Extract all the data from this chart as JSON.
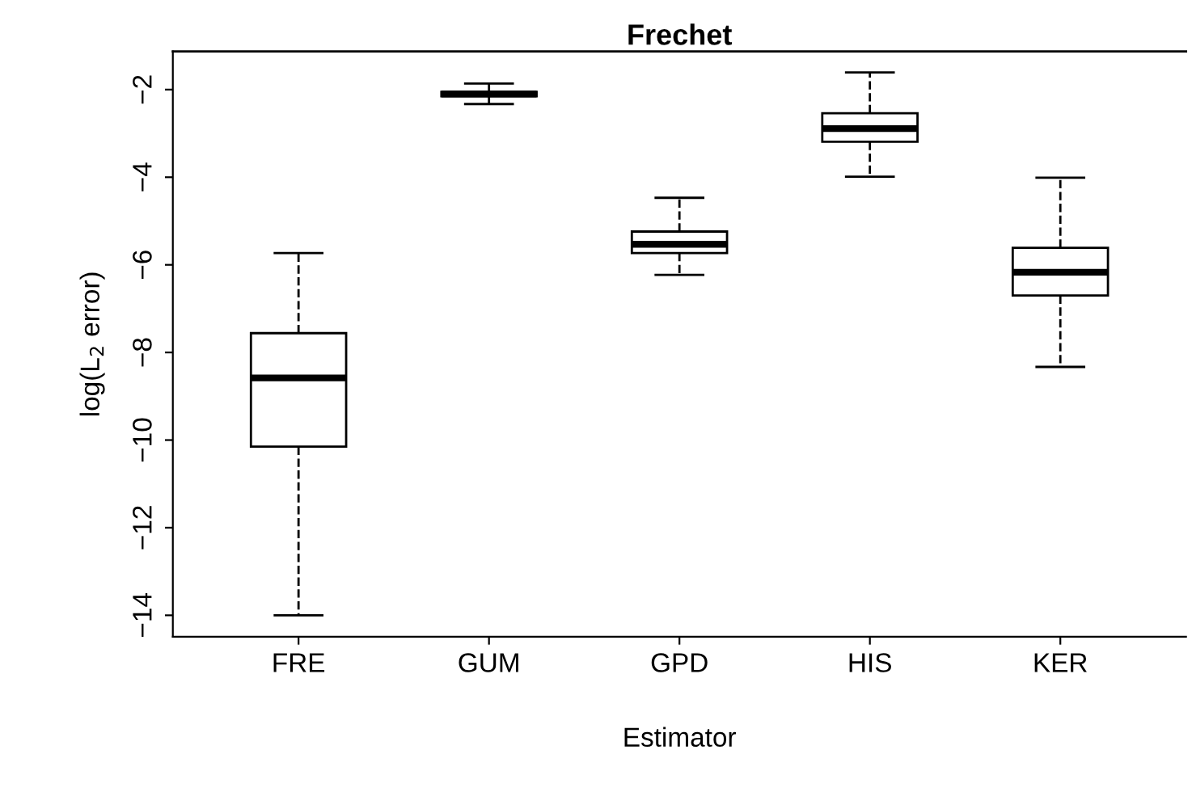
{
  "chart_data": {
    "type": "box",
    "title": "Frechet",
    "xlabel": "Estimator",
    "ylabel": "log(L$_{2}$ error)",
    "categories": [
      "FRE",
      "GUM",
      "GPD",
      "HIS",
      "KER"
    ],
    "boxes": [
      {
        "low": -14.0,
        "q1": -10.15,
        "median": -8.58,
        "q3": -7.56,
        "high": -5.73
      },
      {
        "low": -2.33,
        "q1": -2.15,
        "median": -2.1,
        "q3": -2.05,
        "high": -1.86
      },
      {
        "low": -6.23,
        "q1": -5.73,
        "median": -5.53,
        "q3": -5.24,
        "high": -4.47
      },
      {
        "low": -3.99,
        "q1": -3.19,
        "median": -2.89,
        "q3": -2.54,
        "high": -1.61
      },
      {
        "low": -8.33,
        "q1": -6.7,
        "median": -6.17,
        "q3": -5.61,
        "high": -4.01
      }
    ],
    "color": "#ffffff",
    "ylim": [
      -14.49,
      -1.13
    ],
    "yticks": [
      -14,
      -12,
      -10,
      -8,
      -6,
      -4,
      -2
    ],
    "grid": false,
    "legend": false,
    "line_style": "dashed"
  }
}
